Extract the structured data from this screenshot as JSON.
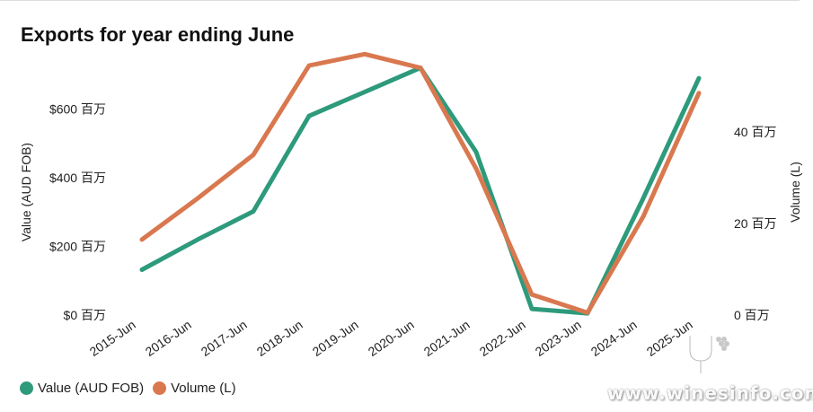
{
  "chart_data": {
    "type": "line",
    "title": "Exports for year ending June",
    "categories": [
      "2015-Jun",
      "2016-Jun",
      "2017-Jun",
      "2018-Jun",
      "2019-Jun",
      "2020-Jun",
      "2021-Jun",
      "2022-Jun",
      "2023-Jun",
      "2024-Jun",
      "2025-Jun"
    ],
    "series": [
      {
        "name": "Value (AUD FOB)",
        "axis": "left",
        "color": "#2e9a7c",
        "values": [
          132000000,
          220000000,
          302000000,
          580000000,
          650000000,
          720000000,
          475000000,
          18000000,
          5000000,
          340000000,
          690000000
        ]
      },
      {
        "name": "Volume (L)",
        "axis": "right",
        "color": "#d9784f",
        "values": [
          16500000,
          25500000,
          35000000,
          54500000,
          57000000,
          54000000,
          32000000,
          4500000,
          500000,
          21500000,
          48500000
        ]
      }
    ],
    "ylabel": "Value (AUD FOB)",
    "ylim": [
      0,
      800000000
    ],
    "yticks": [
      {
        "value": 0,
        "label": "$0 百万"
      },
      {
        "value": 200000000,
        "label": "$200 百万"
      },
      {
        "value": 400000000,
        "label": "$400 百万"
      },
      {
        "value": 600000000,
        "label": "$600 百万"
      }
    ],
    "y2label": "Volume (L)",
    "y2lim": [
      0,
      60000000
    ],
    "y2ticks": [
      {
        "value": 0,
        "label": "0 百万"
      },
      {
        "value": 20000000,
        "label": "20 百万"
      },
      {
        "value": 40000000,
        "label": "40 百万"
      }
    ],
    "grid": false,
    "legend_position": "bottom-left"
  },
  "watermark": {
    "text": "www.winesinfo.com"
  }
}
